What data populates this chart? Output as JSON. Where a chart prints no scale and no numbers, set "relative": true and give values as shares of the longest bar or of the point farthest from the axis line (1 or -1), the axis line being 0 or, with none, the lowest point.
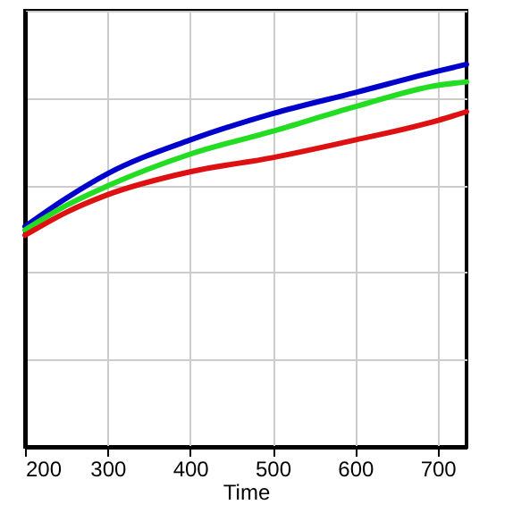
{
  "chart_data": {
    "type": "line",
    "xlabel": "Time",
    "relative": true,
    "grid": true,
    "line_style": "solid",
    "marker": "none",
    "x": [
      200,
      250,
      300,
      400,
      500,
      600,
      700,
      735
    ],
    "xlim": [
      200,
      735
    ],
    "xticks": [
      200,
      300,
      400,
      500,
      600,
      700
    ],
    "series": [
      {
        "color": "#0000cc",
        "values": [
          0.576,
          0.65,
          0.714,
          0.802,
          0.871,
          0.926,
          0.982,
          1
        ]
      },
      {
        "color": "#22dd22",
        "values": [
          0.567,
          0.631,
          0.682,
          0.765,
          0.825,
          0.889,
          0.945,
          0.954
        ]
      },
      {
        "color": "#dd1111",
        "values": [
          0.553,
          0.613,
          0.659,
          0.719,
          0.756,
          0.802,
          0.853,
          0.876
        ]
      }
    ]
  }
}
